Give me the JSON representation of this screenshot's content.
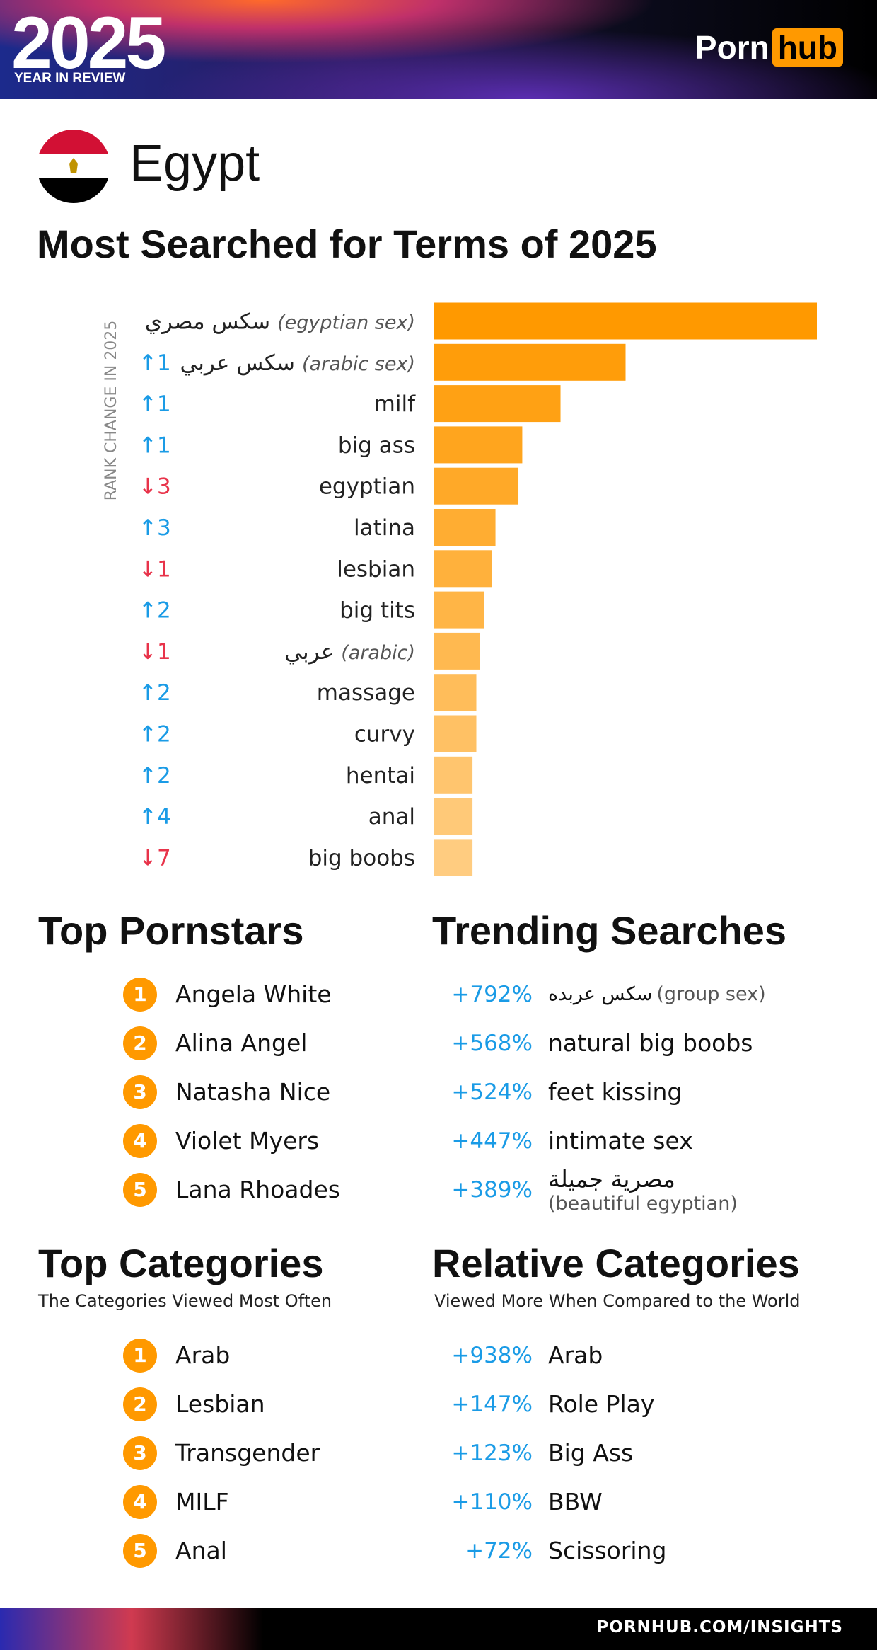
{
  "header": {
    "year": "2025",
    "subtitle": "YEAR IN REVIEW",
    "logo_left": "Porn",
    "logo_right": "hub"
  },
  "country": "Egypt",
  "chart_data": {
    "type": "bar",
    "orientation": "horizontal",
    "title": "Most Searched for Terms of 2025",
    "axis_label": "RANK CHANGE IN 2025",
    "categories": [
      "سكس مصري",
      "سكس عربي",
      "milf",
      "big ass",
      "egyptian",
      "latina",
      "lesbian",
      "big tits",
      "عربي",
      "massage",
      "curvy",
      "hentai",
      "anal",
      "big boobs"
    ],
    "category_notes": [
      "(egyptian sex)",
      "(arabic sex)",
      null,
      null,
      null,
      null,
      null,
      null,
      "(arabic)",
      null,
      null,
      null,
      null,
      null
    ],
    "rank_changes": [
      null,
      "↑1",
      "↑1",
      "↑1",
      "↓3",
      "↑3",
      "↓1",
      "↑2",
      "↓1",
      "↑2",
      "↑2",
      "↑2",
      "↑4",
      "↓7"
    ],
    "values": [
      100,
      50,
      33,
      23,
      22,
      16,
      15,
      13,
      12,
      11,
      11,
      10,
      10,
      10
    ],
    "xlim": [
      0,
      100
    ],
    "colors": [
      "#ff9900",
      "#ff9d0a",
      "#ffa114",
      "#ffa51e",
      "#ffa928",
      "#ffad32",
      "#ffb13c",
      "#ffb546",
      "#ffb950",
      "#ffbd5a",
      "#ffc164",
      "#ffc56e",
      "#ffc978",
      "#ffcc80"
    ]
  },
  "top_pornstars": {
    "title": "Top Pornstars",
    "items": [
      {
        "rank": "1",
        "name": "Angela White"
      },
      {
        "rank": "2",
        "name": "Alina Angel"
      },
      {
        "rank": "3",
        "name": "Natasha Nice"
      },
      {
        "rank": "4",
        "name": "Violet Myers"
      },
      {
        "rank": "5",
        "name": "Lana Rhoades"
      }
    ]
  },
  "trending_searches": {
    "title": "Trending Searches",
    "items": [
      {
        "change": "+792%",
        "term": "سكس عربده",
        "note": "(group sex)"
      },
      {
        "change": "+568%",
        "term": "natural big boobs"
      },
      {
        "change": "+524%",
        "term": "feet kissing"
      },
      {
        "change": "+447%",
        "term": "intimate sex"
      },
      {
        "change": "+389%",
        "term": "مصرية جميلة",
        "note": "(beautiful egyptian)"
      }
    ]
  },
  "top_categories": {
    "title": "Top Categories",
    "subtitle": "The Categories Viewed Most Often",
    "items": [
      {
        "rank": "1",
        "name": "Arab"
      },
      {
        "rank": "2",
        "name": "Lesbian"
      },
      {
        "rank": "3",
        "name": "Transgender"
      },
      {
        "rank": "4",
        "name": "MILF"
      },
      {
        "rank": "5",
        "name": "Anal"
      }
    ]
  },
  "relative_categories": {
    "title": "Relative Categories",
    "subtitle": "Viewed More When Compared to the World",
    "items": [
      {
        "change": "+938%",
        "name": "Arab"
      },
      {
        "change": "+147%",
        "name": "Role Play"
      },
      {
        "change": "+123%",
        "name": "Big Ass"
      },
      {
        "change": "+110%",
        "name": "BBW"
      },
      {
        "change": "+72%",
        "name": "Scissoring"
      }
    ]
  },
  "footer": "PORNHUB.COM/INSIGHTS"
}
